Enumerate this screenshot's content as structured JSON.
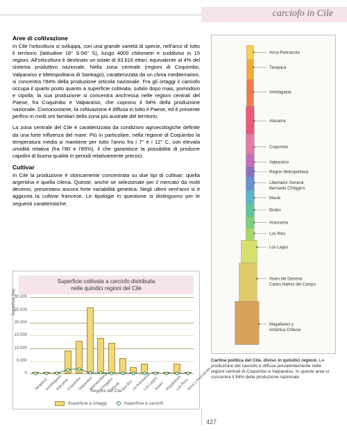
{
  "header": {
    "title": "carciofo in Cile"
  },
  "text": {
    "h1": "Aree di coltivazione",
    "p1": "In Cile l'orticoltura si sviluppa, con una grande varietà di specie, nell'arco di tutto il territorio (latitudine 18° S-56° S), lungo 4000 chilometri e suddiviso in 15 regioni. All'orticoltura è destinato un totale di 93.616 ettari, equivalente al 4% del sistema produttivo nazionale. Nella zona centrale (regioni di Coquimbo, Valparaíso e Metropolitana di Santiago), caratterizzata da un clima mediterraneo, si concentra l'84% della produzione orticola nazionale. Fra gli ortaggi il carciofo occupa il quarto posto quanto a superficie coltivata, subito dopo mais, pomodoro e cipolla; la sua produzione si concentra anch'essa nelle regioni centrali del Paese, fra Coquimbo e Valparaíso, che coprono il 94% della produzione nazionale. Ciononostante, la coltivazione è diffusa in tutto il Paese, ed è presente perfino in molti orti familiari della zona più australe del territorio.",
    "p2": "La zona centrale del Cile è caratterizzata da condizioni agroecologiche definite da una forte influenza del mare. Più in particolare, nella regione di Coquimbo la temperatura media si mantiene per tutto l'anno fra i 7° e i 12° C, con elevata umidità relativa (fra l'80 e l'85%), il che garantisce la possibilità di produrre capolini di buona qualità in periodi relativamente precoci.",
    "h2": "Cultivar",
    "p3": "In Cile la produzione è storicamente concentrata su due tipi di cultivar: quella argentina e quella cilena. Queste, anche se selezionate per il mercato da molti decenni, presentano ancora forte variabilità genetica. Negli ultimi vent'anni si è aggiunta la cultivar francese. Le tipologie in questione si distinguono per le seguenti caratteristiche."
  },
  "chart": {
    "title_l1": "Superficie coltivata a carciofo distribuita",
    "title_l2": "nelle quindici regioni del Cile",
    "ylabel": "Superficie (ha)",
    "xlabel": "Regioni del Cile",
    "ylim": 30000,
    "yticks": [
      0,
      5000,
      10000,
      15000,
      20000,
      25000,
      30000
    ],
    "ytick_labels": [
      "0",
      "5.000",
      "10.000",
      "15.000",
      "20.000",
      "25.000",
      "30.000"
    ],
    "grid_major_color": "#b8a878",
    "grid_minor_color": "#e5ddc5",
    "bar_fill": "#f0d878",
    "bar_stroke": "#a88840",
    "line_stroke": "#2a7a5a",
    "categories": [
      "Tarapacá",
      "Antofagasta",
      "Atacama",
      "Coquimbo",
      "Valparaíso",
      "Metropolitana",
      "O'Higgins",
      "Maule",
      "Bío-Bío",
      "La Araucanía",
      "Los Lagos",
      "Aysén",
      "Magallanes",
      "Los Ríos",
      "Arica y Parinacota"
    ],
    "bar_values": [
      200,
      100,
      500,
      9000,
      13000,
      26000,
      14000,
      12000,
      6000,
      2500,
      4000,
      50,
      100,
      4000,
      500
    ],
    "line_values": [
      0,
      0,
      50,
      1500,
      1800,
      200,
      200,
      150,
      80,
      60,
      40,
      0,
      0,
      80,
      20
    ],
    "legend1": "Superficie a ortaggi",
    "legend2": "Superficie a carciofi"
  },
  "map": {
    "background": "#fafaf7",
    "border": "#c0c0c0",
    "regions": [
      {
        "name": "Arica-Parinacota",
        "y": 22,
        "color": "#f6d04d"
      },
      {
        "name": "Tarapacá",
        "y": 44,
        "color": "#f4a93a"
      },
      {
        "name": "Antofagasta",
        "y": 80,
        "color": "#ee7b4b"
      },
      {
        "name": "Atacama",
        "y": 122,
        "color": "#e85a78"
      },
      {
        "name": "Coquimbo",
        "y": 160,
        "color": "#e77aa8"
      },
      {
        "name": "Valparaíso",
        "y": 182,
        "color": "#c66fb5"
      },
      {
        "name": "Región Metropolitana",
        "y": 196,
        "color": "#8a6fc0"
      },
      {
        "name": "Libertador General Bernardo O'Higgins",
        "y": 212,
        "color": "#6b8ed4"
      },
      {
        "name": "Maule",
        "y": 234,
        "color": "#5ab5c6"
      },
      {
        "name": "Biobío",
        "y": 252,
        "color": "#5fc6a0"
      },
      {
        "name": "Araucanía",
        "y": 270,
        "color": "#7dcf7a"
      },
      {
        "name": "Los Ríos",
        "y": 286,
        "color": "#a9d86a"
      },
      {
        "name": "Los Lagos",
        "y": 306,
        "color": "#d6e06a"
      },
      {
        "name": "Aisén del General Carlos Ibáñez del Campo",
        "y": 352,
        "color": "#e0c96a"
      },
      {
        "name": "Magallanes y Antártica Chilena",
        "y": 418,
        "color": "#d8a05a"
      }
    ],
    "caption_bold": "Cartina politica del Cile, diviso in quindici regioni.",
    "caption_rest": " La produzione del carciofo è diffusa prevalentemente nelle regioni centrali di Coquimbo e Valparaíso. In queste aree si concentra il 94% della produzione nazionale"
  },
  "page": {
    "number": "427"
  }
}
